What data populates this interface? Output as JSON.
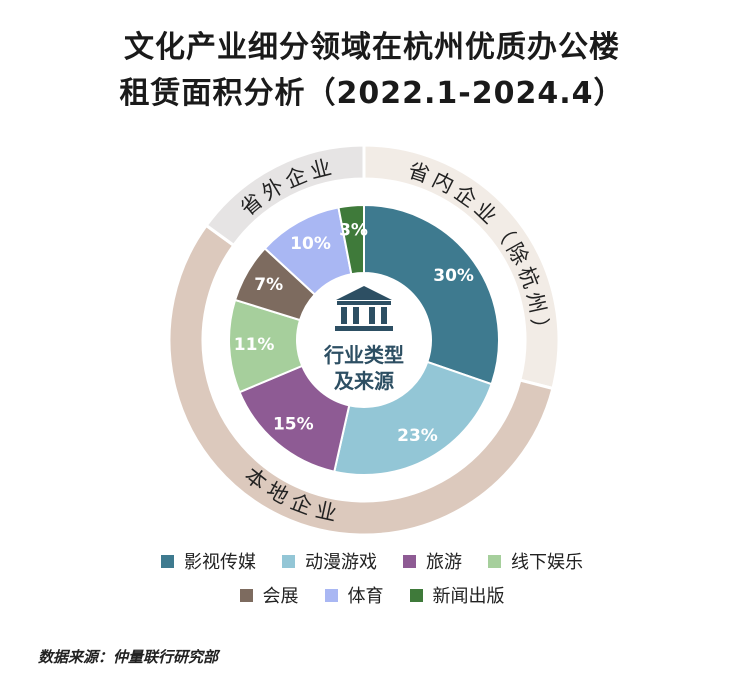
{
  "title_line1": "文化产业细分领域在杭州优质办公楼",
  "title_line2": "租赁面积分析（2022.1-2024.4）",
  "center_label_line1": "行业类型",
  "center_label_line2": "及来源",
  "center_icon": "bank-building-icon",
  "source": "数据来源：仲量联行研究部",
  "chart_data": {
    "type": "pie",
    "title": "文化产业细分领域在杭州优质办公楼租赁面积分析（2022.1-2024.4）",
    "inner_ring": {
      "categories": [
        "影视传媒",
        "动漫游戏",
        "旅游",
        "线下娱乐",
        "会展",
        "体育",
        "新闻出版"
      ],
      "values": [
        30,
        23,
        15,
        11,
        7,
        10,
        3
      ],
      "labels": [
        "30%",
        "23%",
        "15%",
        "11%",
        "7%",
        "10%",
        "3%"
      ],
      "colors": [
        "#3e7a8f",
        "#93c6d6",
        "#8e5b94",
        "#a6cf9c",
        "#7d6b5f",
        "#a9b7f3",
        "#3f7a3a"
      ]
    },
    "outer_ring": {
      "categories": [
        "省内企业（除杭州）",
        "本地企业",
        "省外企业"
      ],
      "values": [
        29,
        56,
        15
      ],
      "colors": [
        "#f2ece6",
        "#dcc9bd",
        "#e6e4e4"
      ]
    },
    "legend_placement": "bottom"
  }
}
